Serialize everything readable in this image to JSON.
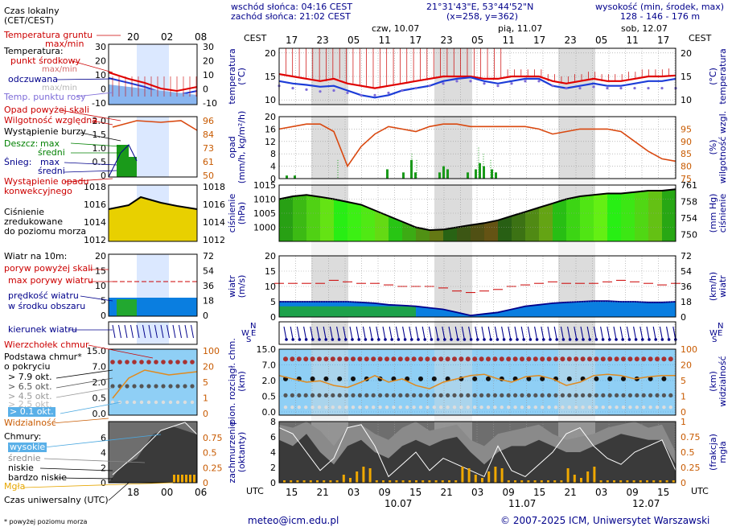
{
  "header": {
    "sunrise": "wschód słońca: 04:16 CEST",
    "sunset": "zachód słońca: 21:02 CEST",
    "coords": "21°31'43\"E, 53°44'52\"N",
    "grid": "(x=258, y=362)",
    "elev_title": "wysokość (min, środek, max)",
    "elev_values": "128 - 146 - 176 m",
    "days": [
      "czw, 10.07",
      "pią, 11.07",
      "sob, 12.07"
    ],
    "cest": "CEST",
    "utc": "UTC"
  },
  "legend": {
    "czas_lokalny": "Czas lokalny",
    "czas_lokalny2": "(CET/CEST)",
    "temp_gruntu": "Temperatura gruntu",
    "temp_gruntu2": "max/min",
    "temperatura": "Temperatura:",
    "punkt_srodkowy": "punkt środkowy",
    "maxmin1": "max/min",
    "odczuwana": "odczuwana",
    "maxmin2": "max/min",
    "punkt_rosy": "Temp. punktu rosy",
    "opad_powyzej": "Opad powyżej skali",
    "wilgotnosc": "Wilgotność względna",
    "burza": "Wystąpienie burzy",
    "deszcz": "Deszcz:",
    "deszcz_max": "max",
    "deszcz_sredni": "średni",
    "snieg": "Śnieg:",
    "snieg_max": "max",
    "snieg_sredni": "średni",
    "wyst_opadu": "Wystąpienie opadu",
    "konwekcyjnego": "konwekcyjnego",
    "cisnienie1": "Ciśnienie",
    "cisnienie2": "zredukowane",
    "cisnienie3": "do poziomu morza",
    "wiatr10": "Wiatr na 10m:",
    "poryw_skali": "poryw powyżej skali",
    "max_porywy": "max porywy wiatru",
    "predkosc": "prędkość wiatru",
    "w_srodku": "w środku obszaru",
    "kierunek": "kierunek wiatru",
    "wierzcholek": "Wierzchołek chmur",
    "podstawa1": "Podstawa chmur*",
    "podstawa2": "o pokryciu",
    "okt1": "> 7.9 okt.",
    "okt2": "> 6.5 okt.",
    "okt3": "> 4.5 okt.",
    "okt4": "> 2.5 okt.",
    "okt5": "> 0.1 okt.",
    "widzialnosc": "Widzialność",
    "chmury": "Chmury:",
    "wysokie": "wysokie",
    "srednie": "średnie",
    "niskie": "niskie",
    "bardzo_niskie": "bardzo niskie",
    "mgla": "Mgła",
    "czas_uniw": "Czas uniwersalny (UTC)",
    "przypis": "* powyżej poziomu morza"
  },
  "legend_axes": {
    "temp": [
      "30",
      "20",
      "10",
      "0",
      "-10"
    ],
    "hum_left": [
      "2.0",
      "1.5",
      "1.0",
      "0.5",
      "0"
    ],
    "hum_right": [
      "96",
      "84",
      "73",
      "61",
      "50"
    ],
    "press": [
      "1018",
      "1016",
      "1014",
      "1012"
    ],
    "wind_left": [
      "20",
      "15",
      "10",
      "5",
      "0"
    ],
    "wind_right": [
      "72",
      "54",
      "36",
      "18",
      "0"
    ],
    "cloud_left": [
      "15.0",
      "7.0",
      "2.0",
      "0.5",
      "0.0"
    ],
    "cloud_right": [
      "100",
      "20",
      "5",
      "1",
      "0"
    ],
    "frac_left": [
      "6",
      "4",
      "2",
      "0"
    ],
    "frac_right": [
      "0.75",
      "0.5",
      "0.25",
      "0"
    ],
    "top_hours": [
      "20",
      "02",
      "08"
    ],
    "bottom_hours": [
      "18",
      "00",
      "06"
    ]
  },
  "panel_labels": {
    "temp_l": "temperatura",
    "temp_l2": "(°C)",
    "temp_r": "(°C)",
    "temp_r2": "temperatura",
    "precip_l": "opad",
    "precip_l2": "(mm/h, kg/m²/h)",
    "precip_r": "(%)",
    "precip_r2": "wilgotność wzgl.",
    "press_l": "ciśnienie",
    "press_l2": "(hPa)",
    "press_r": "(mm Hg)",
    "press_r2": "ciśnienie",
    "wind_l": "wiatr",
    "wind_l2": "(m/s)",
    "wind_r": "(km/h)",
    "wind_r2": "wiatr",
    "cloud_l": "pion. rozciągł. chm.",
    "cloud_l2": "(km)",
    "cloud_r": "(km)",
    "cloud_r2": "widzialność",
    "frac_l": "zachmurzenie",
    "frac_l2": "(oktanty)",
    "frac_r": "(frakcja)",
    "frac_r2": "mgła"
  },
  "axes": {
    "top_hours": [
      "17",
      "23",
      "05",
      "11",
      "17",
      "23",
      "05",
      "11",
      "17",
      "23",
      "05",
      "11",
      "17"
    ],
    "bottom_hours": [
      "15",
      "21",
      "03",
      "09",
      "15",
      "21",
      "03",
      "09",
      "15",
      "21",
      "03",
      "09",
      "15"
    ],
    "bottom_dates": [
      "10.07",
      "11.07",
      "12.07"
    ],
    "temp_ticks": [
      "20",
      "15",
      "10"
    ],
    "precip_ticks": [
      "20",
      "16",
      "12",
      "8",
      "4",
      "0"
    ],
    "hum_ticks": [
      "95",
      "90",
      "85",
      "80",
      "75"
    ],
    "press_ticks": [
      "1015",
      "1010",
      "1005",
      "1000"
    ],
    "mmhg_ticks": [
      "761",
      "758",
      "754",
      "750"
    ],
    "wind_ticks": [
      "20",
      "15",
      "10",
      "5",
      "0"
    ],
    "kmh_ticks": [
      "72",
      "54",
      "36",
      "18",
      "0"
    ],
    "cloud_ticks": [
      "15.0",
      "7.0",
      "2.0",
      "0.5",
      "0.0"
    ],
    "vis_ticks": [
      "100",
      "20",
      "5",
      "1",
      "0"
    ],
    "okt_ticks": [
      "8",
      "6",
      "4",
      "2",
      "0"
    ],
    "frac_ticks": [
      "1",
      "0.75",
      "0.5",
      "0.25",
      "0"
    ]
  },
  "chart_data": [
    {
      "type": "line",
      "name": "temperatura",
      "ylim": [
        9,
        21
      ],
      "series": [
        {
          "name": "punkt środkowy",
          "values": [
            15.5,
            15,
            14.5,
            14,
            14.5,
            13.5,
            13,
            12.5,
            13,
            13.5,
            14,
            14.5,
            15,
            15,
            15,
            14.5,
            14.5,
            15,
            15,
            15,
            14,
            13.5,
            14,
            14.5,
            14,
            14,
            14.5,
            15,
            15,
            15.2
          ]
        },
        {
          "name": "odczuwana",
          "values": [
            14,
            13.5,
            13.2,
            12.8,
            13,
            12,
            11,
            10.5,
            11,
            12,
            12.5,
            13,
            14,
            14.5,
            14.8,
            14,
            13.5,
            14,
            14.5,
            14.5,
            13,
            12.5,
            13,
            13.5,
            13,
            13,
            13.5,
            14,
            14,
            14.5
          ]
        },
        {
          "name": "Temp. punktu rosy",
          "values": [
            13,
            12.5,
            12.2,
            11.8,
            12,
            11.5,
            11,
            11,
            11.5,
            12,
            12.5,
            13,
            13.5,
            14,
            14,
            13.5,
            13,
            13.5,
            14,
            14,
            13,
            12.5,
            12.5,
            12.8,
            12.5,
            12.5,
            12.5,
            12.5,
            12.5,
            12.5
          ]
        }
      ]
    },
    {
      "type": "line",
      "name": "wilgotność",
      "ylim": [
        75,
        100
      ],
      "series": [
        {
          "name": "Wilgotność względna",
          "values": [
            95,
            96,
            97,
            97,
            94,
            80,
            88,
            93,
            96,
            95,
            94,
            96,
            97,
            97,
            96,
            96,
            96,
            96,
            96,
            95,
            93,
            94,
            95,
            95,
            95,
            94,
            90,
            86,
            83,
            82
          ]
        }
      ]
    },
    {
      "type": "area",
      "name": "ciśnienie",
      "ylim": [
        995,
        1015
      ],
      "series": [
        {
          "name": "Ciśnienie zredukowane do poziomu morza",
          "values": [
            1010,
            1011,
            1011.5,
            1010.8,
            1010,
            1009,
            1008,
            1006,
            1004,
            1002,
            1000,
            999,
            999.2,
            1000,
            1000.8,
            1001.5,
            1002.5,
            1004,
            1005.5,
            1007,
            1008.5,
            1010,
            1011,
            1011.5,
            1012,
            1012,
            1012.5,
            1013,
            1013,
            1013.5
          ]
        }
      ]
    },
    {
      "type": "area",
      "name": "wiatr",
      "ylim": [
        0,
        20
      ],
      "series": [
        {
          "name": "prędkość wiatru",
          "values": [
            5,
            5,
            5,
            5,
            5,
            5,
            4.8,
            4.5,
            4,
            3.8,
            3.5,
            3,
            2.5,
            1.5,
            0.5,
            1,
            1.5,
            2.5,
            3.5,
            4,
            4.5,
            4.8,
            5,
            5.2,
            5.2,
            5,
            5,
            4.8,
            4.8,
            5
          ]
        },
        {
          "name": "max porywy wiatru",
          "values": [
            11,
            11,
            11,
            11,
            12,
            11.5,
            11,
            11,
            10.5,
            10,
            10,
            10,
            9.5,
            8.5,
            8,
            8.5,
            9,
            10,
            10.5,
            11,
            11.5,
            11,
            11,
            11,
            11.5,
            12,
            11.5,
            11,
            10.5,
            11
          ]
        }
      ]
    }
  ]
}
